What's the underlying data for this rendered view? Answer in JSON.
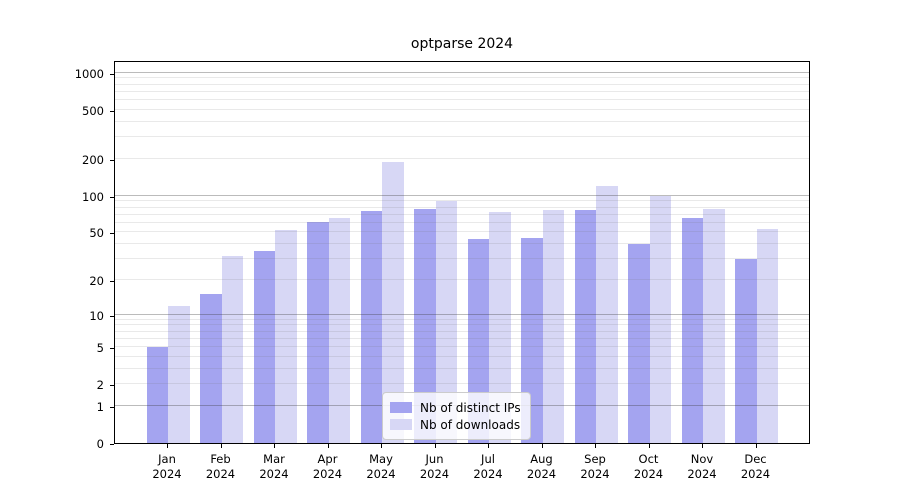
{
  "chart_data": {
    "type": "bar",
    "title": "optparse 2024",
    "categories": [
      "Jan 2024",
      "Feb 2024",
      "Mar 2024",
      "Apr 2024",
      "May 2024",
      "Jun 2024",
      "Jul 2024",
      "Aug 2024",
      "Sep 2024",
      "Oct 2024",
      "Nov 2024",
      "Dec 2024"
    ],
    "x_tick_top": [
      "Jan",
      "Feb",
      "Mar",
      "Apr",
      "May",
      "Jun",
      "Jul",
      "Aug",
      "Sep",
      "Oct",
      "Nov",
      "Dec"
    ],
    "x_tick_bottom": "2024",
    "series": [
      {
        "name": "Nb of distinct IPs",
        "color": "#a4a4f0",
        "values": [
          5,
          15,
          35,
          61,
          75,
          78,
          44,
          45,
          77,
          40,
          66,
          30
        ]
      },
      {
        "name": "Nb of downloads",
        "color": "#d7d7f5",
        "values": [
          12,
          32,
          52,
          66,
          190,
          90,
          74,
          77,
          120,
          100,
          78,
          53
        ]
      }
    ],
    "y_ticks": [
      0,
      1,
      2,
      5,
      10,
      20,
      50,
      100,
      200,
      500,
      1000
    ],
    "y_scale": "symlog",
    "ylim": [
      0,
      1270
    ],
    "grid": "log major and minor horizontal gridlines",
    "legend_position": "inside-bottom-center"
  },
  "colors": {
    "background": "#ffffff",
    "bar_distinct_ips": "#a4a4f0",
    "bar_downloads": "#d7d7f5",
    "grid_major": "#b3b3b3",
    "grid_minor": "#e9e9e9",
    "axis_spine": "#000000",
    "text": "#000000",
    "legend_border": "#cccccc",
    "legend_background": "rgba(255,255,255,0.8)"
  }
}
